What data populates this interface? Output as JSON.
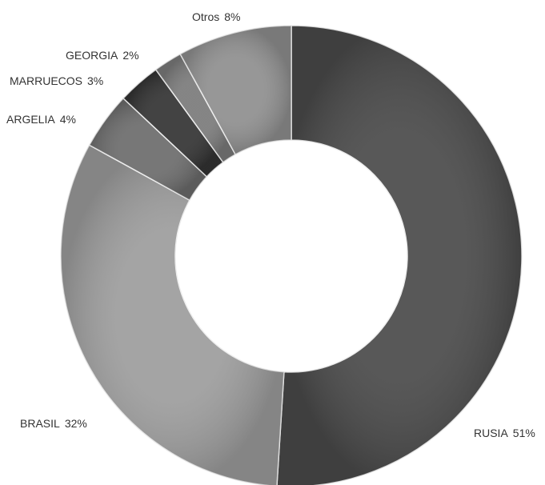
{
  "chart_data": {
    "type": "donut",
    "categories": [
      "RUSIA",
      "BRASIL",
      "ARGELIA",
      "MARRUECOS",
      "GEORGIA",
      "Otros"
    ],
    "values": [
      51,
      32,
      4,
      3,
      2,
      8
    ],
    "value_labels": [
      "51%",
      "32%",
      "4%",
      "3%",
      "2%",
      "8%"
    ],
    "colors": [
      "#4a4a4a",
      "#9c9c9c",
      "#6b6b6b",
      "#333333",
      "#7a7a7a",
      "#8e8e8e"
    ]
  }
}
